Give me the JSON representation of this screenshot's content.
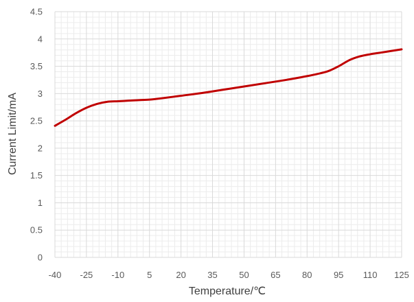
{
  "chart_data": {
    "type": "line",
    "xlabel": "Temperature/℃",
    "ylabel": "Current Limit/mA",
    "x_ticks": [
      -40,
      -25,
      -10,
      5,
      20,
      35,
      50,
      65,
      80,
      95,
      110,
      125
    ],
    "y_ticks": [
      0,
      0.5,
      1,
      1.5,
      2,
      2.5,
      3,
      3.5,
      4,
      4.5
    ],
    "xlim": [
      -40,
      125
    ],
    "ylim": [
      0,
      4.5
    ],
    "grid": "major-and-minor",
    "series": [
      {
        "color": "#c00000",
        "x": [
          -40,
          -35,
          -30,
          -25,
          -20,
          -15,
          -10,
          -5,
          0,
          5,
          10,
          20,
          30,
          40,
          50,
          60,
          70,
          80,
          85,
          90,
          95,
          100,
          105,
          110,
          115,
          120,
          125
        ],
        "y": [
          2.41,
          2.52,
          2.64,
          2.74,
          2.81,
          2.85,
          2.86,
          2.87,
          2.88,
          2.89,
          2.91,
          2.96,
          3.01,
          3.07,
          3.13,
          3.19,
          3.25,
          3.32,
          3.36,
          3.41,
          3.5,
          3.61,
          3.68,
          3.72,
          3.75,
          3.78,
          3.81
        ]
      }
    ]
  }
}
